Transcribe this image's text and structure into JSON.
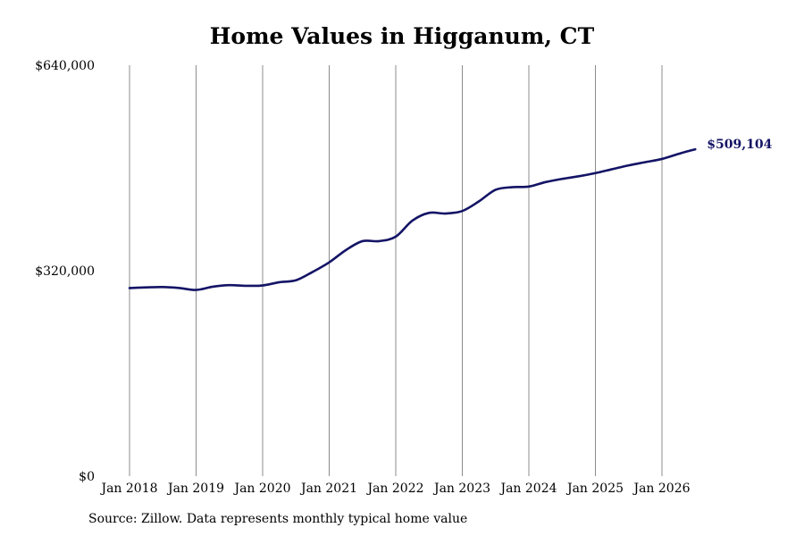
{
  "chart_data": {
    "type": "line",
    "title": "Home Values in Higganum, CT",
    "xlabel": "",
    "ylabel": "",
    "ylim": [
      0,
      640000
    ],
    "y_ticks": [
      {
        "value": 0,
        "label": "$0"
      },
      {
        "value": 320000,
        "label": "$320,000"
      },
      {
        "value": 640000,
        "label": "$640,000"
      }
    ],
    "x_ticks": [
      {
        "value": 2018.0,
        "label": "Jan 2018"
      },
      {
        "value": 2019.0,
        "label": "Jan 2019"
      },
      {
        "value": 2020.0,
        "label": "Jan 2020"
      },
      {
        "value": 2021.0,
        "label": "Jan 2021"
      },
      {
        "value": 2022.0,
        "label": "Jan 2022"
      },
      {
        "value": 2023.0,
        "label": "Jan 2023"
      },
      {
        "value": 2024.0,
        "label": "Jan 2024"
      },
      {
        "value": 2025.0,
        "label": "Jan 2025"
      },
      {
        "value": 2026.0,
        "label": "Jan 2026"
      }
    ],
    "grid": {
      "vertical": true,
      "horizontal": false
    },
    "series": [
      {
        "color": "#141466",
        "x": [
          2018.0,
          2018.25,
          2018.5,
          2018.75,
          2019.0,
          2019.25,
          2019.5,
          2019.75,
          2020.0,
          2020.25,
          2020.5,
          2020.75,
          2021.0,
          2021.25,
          2021.5,
          2021.75,
          2022.0,
          2022.25,
          2022.5,
          2022.75,
          2023.0,
          2023.25,
          2023.5,
          2023.75,
          2024.0,
          2024.25,
          2024.5,
          2024.75,
          2025.0,
          2025.25,
          2025.5,
          2025.75,
          2026.0,
          2026.25,
          2026.5
        ],
        "values": [
          293000,
          294000,
          294500,
          293000,
          290000,
          295000,
          297500,
          296500,
          297000,
          302000,
          305000,
          318000,
          333000,
          352000,
          366000,
          366000,
          373000,
          398000,
          410000,
          409000,
          413000,
          428000,
          446000,
          450000,
          451000,
          458000,
          463000,
          467000,
          472000,
          478000,
          484000,
          489000,
          494000,
          502000,
          509104
        ]
      }
    ],
    "end_label": "$509,104",
    "source_note": "Source: Zillow. Data represents monthly typical home value"
  }
}
